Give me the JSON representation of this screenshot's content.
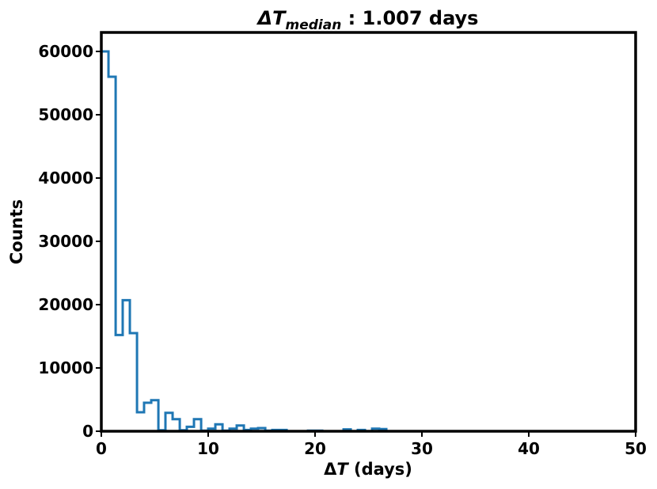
{
  "chart_data": {
    "type": "histogram",
    "title": {
      "prefix": "ΔT",
      "subscript": "median",
      "suffix": " : 1.007 days"
    },
    "xlabel": {
      "symbol": "ΔT",
      "italic_part": "T",
      "units": " (days)"
    },
    "ylabel": "Counts",
    "xlim": [
      0,
      50
    ],
    "ylim": [
      0,
      63000
    ],
    "xticks": [
      0,
      10,
      20,
      30,
      40,
      50
    ],
    "yticks": [
      0,
      10000,
      20000,
      30000,
      40000,
      50000,
      60000
    ],
    "grid": false,
    "line_color": "#1f77b4",
    "bin_width": 0.67,
    "bins": [
      {
        "x0": 0.0,
        "x1": 0.67,
        "count": 60000
      },
      {
        "x0": 0.67,
        "x1": 1.34,
        "count": 56000
      },
      {
        "x0": 1.34,
        "x1": 2.0,
        "count": 15200
      },
      {
        "x0": 2.0,
        "x1": 2.67,
        "count": 20700
      },
      {
        "x0": 2.67,
        "x1": 3.34,
        "count": 15500
      },
      {
        "x0": 3.34,
        "x1": 4.0,
        "count": 3000
      },
      {
        "x0": 4.0,
        "x1": 4.67,
        "count": 4500
      },
      {
        "x0": 4.67,
        "x1": 5.34,
        "count": 4900
      },
      {
        "x0": 5.34,
        "x1": 6.0,
        "count": 150
      },
      {
        "x0": 6.0,
        "x1": 6.67,
        "count": 2900
      },
      {
        "x0": 6.67,
        "x1": 7.34,
        "count": 1900
      },
      {
        "x0": 7.34,
        "x1": 8.0,
        "count": 150
      },
      {
        "x0": 8.0,
        "x1": 8.67,
        "count": 700
      },
      {
        "x0": 8.67,
        "x1": 9.34,
        "count": 1900
      },
      {
        "x0": 9.34,
        "x1": 10.0,
        "count": 100
      },
      {
        "x0": 10.0,
        "x1": 10.67,
        "count": 400
      },
      {
        "x0": 10.67,
        "x1": 11.34,
        "count": 1100
      },
      {
        "x0": 11.34,
        "x1": 12.0,
        "count": 100
      },
      {
        "x0": 12.0,
        "x1": 12.67,
        "count": 400
      },
      {
        "x0": 12.67,
        "x1": 13.34,
        "count": 900
      },
      {
        "x0": 13.34,
        "x1": 14.0,
        "count": 200
      },
      {
        "x0": 14.0,
        "x1": 14.67,
        "count": 400
      },
      {
        "x0": 14.67,
        "x1": 15.34,
        "count": 500
      },
      {
        "x0": 15.34,
        "x1": 16.0,
        "count": 100
      },
      {
        "x0": 16.0,
        "x1": 16.67,
        "count": 200
      },
      {
        "x0": 16.67,
        "x1": 17.34,
        "count": 200
      },
      {
        "x0": 17.34,
        "x1": 19.34,
        "count": 0
      },
      {
        "x0": 19.34,
        "x1": 20.0,
        "count": 100
      },
      {
        "x0": 20.0,
        "x1": 20.67,
        "count": 100
      },
      {
        "x0": 20.67,
        "x1": 22.67,
        "count": 0
      },
      {
        "x0": 22.67,
        "x1": 23.34,
        "count": 300
      },
      {
        "x0": 23.34,
        "x1": 24.0,
        "count": 0
      },
      {
        "x0": 24.0,
        "x1": 24.67,
        "count": 200
      },
      {
        "x0": 24.67,
        "x1": 25.34,
        "count": 0
      },
      {
        "x0": 25.34,
        "x1": 26.0,
        "count": 400
      },
      {
        "x0": 26.0,
        "x1": 26.67,
        "count": 350
      }
    ]
  }
}
